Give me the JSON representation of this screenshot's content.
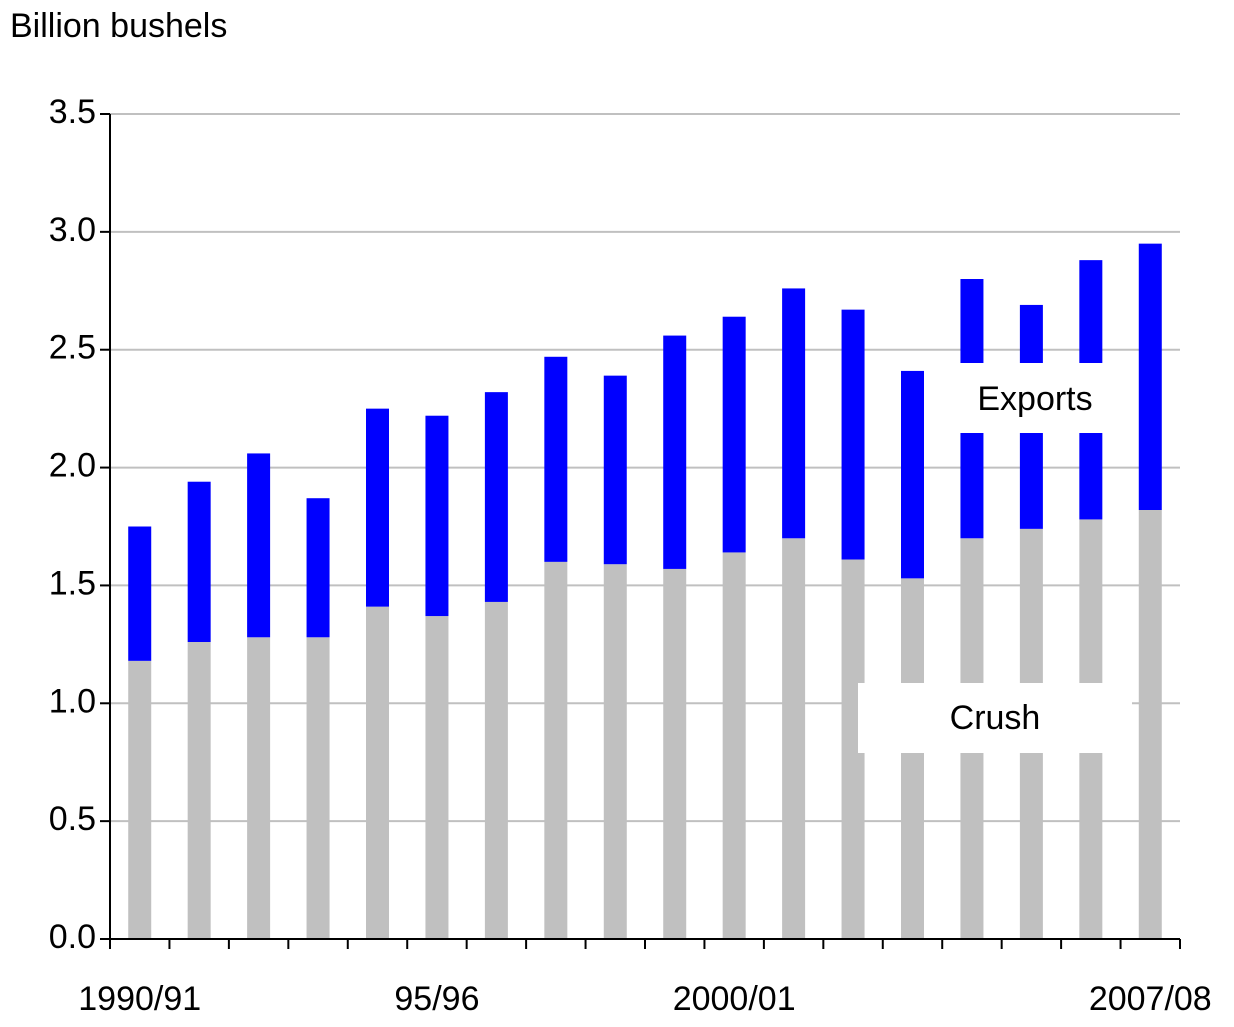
{
  "chart_data": {
    "type": "stacked_bar",
    "y_label": "Billion bushels",
    "categories": [
      "1990/91",
      null,
      null,
      null,
      null,
      "95/96",
      null,
      null,
      null,
      null,
      "2000/01",
      null,
      null,
      null,
      null,
      null,
      null,
      "2007/08"
    ],
    "series": [
      {
        "name": "Crush",
        "color": "#c0c0c0",
        "values": [
          1.18,
          1.26,
          1.28,
          1.28,
          1.41,
          1.37,
          1.43,
          1.6,
          1.59,
          1.57,
          1.64,
          1.7,
          1.61,
          1.53,
          1.7,
          1.74,
          1.78,
          1.82
        ]
      },
      {
        "name": "Exports",
        "color": "#0000ff",
        "values": [
          0.57,
          0.68,
          0.78,
          0.59,
          0.84,
          0.85,
          0.89,
          0.87,
          0.8,
          0.99,
          1.0,
          1.06,
          1.06,
          0.88,
          1.1,
          0.95,
          1.1,
          1.13
        ]
      }
    ],
    "ylim": [
      0,
      3.5
    ],
    "yticks": [
      {
        "value": 0,
        "label": "0.0"
      },
      0.5,
      {
        "value": 1,
        "label": "1.0"
      },
      1.5,
      {
        "value": 2,
        "label": "2.0"
      },
      2.5,
      {
        "value": 3,
        "label": "3.0"
      },
      3.5
    ],
    "grid": true
  }
}
